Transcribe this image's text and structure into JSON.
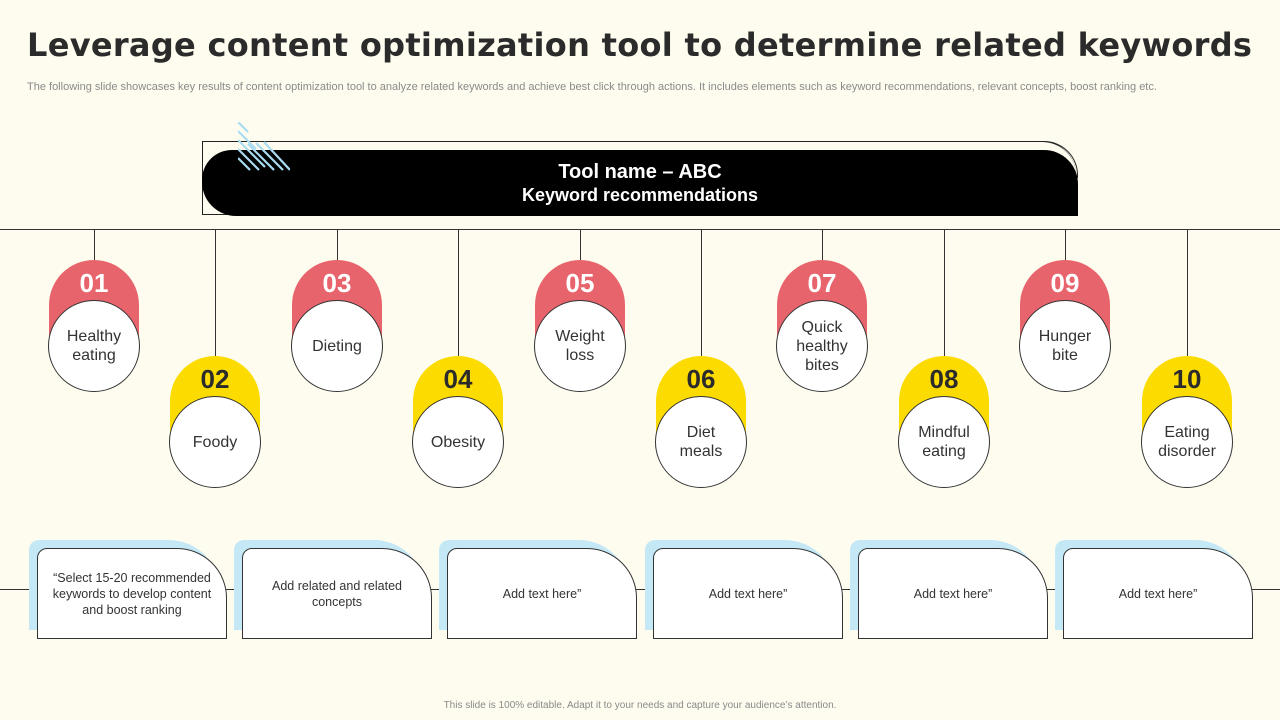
{
  "title": "Leverage content optimization tool to determine related keywords",
  "subtitle": "The following slide showcases key results of content optimization tool to  analyze related keywords and achieve best click through actions. It includes elements such as keyword recommendations, relevant concepts, boost ranking etc.",
  "banner": {
    "title": "Tool name – ABC",
    "subtitle": "Keyword recommendations"
  },
  "keywords": [
    {
      "number": "01",
      "label": "Healthy eating",
      "color": "#e8646c"
    },
    {
      "number": "02",
      "label": "Foody",
      "color": "#fcdb00"
    },
    {
      "number": "03",
      "label": "Dieting",
      "color": "#e8646c"
    },
    {
      "number": "04",
      "label": "Obesity",
      "color": "#fcdb00"
    },
    {
      "number": "05",
      "label": "Weight loss",
      "color": "#e8646c"
    },
    {
      "number": "06",
      "label": "Diet meals",
      "color": "#fcdb00"
    },
    {
      "number": "07",
      "label": "Quick healthy bites",
      "color": "#e8646c"
    },
    {
      "number": "08",
      "label": "Mindful eating",
      "color": "#fcdb00"
    },
    {
      "number": "09",
      "label": "Hunger bite",
      "color": "#e8646c"
    },
    {
      "number": "10",
      "label": "Eating disorder",
      "color": "#fcdb00"
    }
  ],
  "cards": [
    "“Select 15-20 recommended keywords to develop content and boost ranking",
    "Add related and related concepts",
    "Add text here”",
    "Add text here”",
    "Add text here”",
    "Add text here”"
  ],
  "footer": "This slide is 100% editable.  Adapt it to your needs and capture your audience’s attention."
}
